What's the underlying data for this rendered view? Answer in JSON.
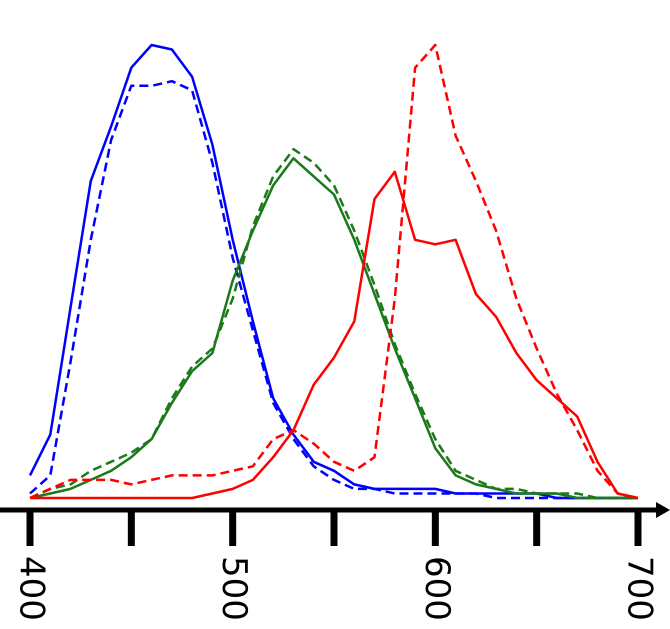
{
  "chart_data": {
    "type": "line",
    "x": [
      400,
      410,
      420,
      430,
      440,
      450,
      460,
      470,
      480,
      490,
      500,
      510,
      520,
      530,
      540,
      550,
      560,
      570,
      580,
      590,
      600,
      610,
      620,
      630,
      640,
      650,
      660,
      670,
      680,
      690,
      700
    ],
    "xlim": [
      400,
      700
    ],
    "xticks": [
      400,
      500,
      600,
      700
    ],
    "minor_xticks": [
      450,
      550,
      650
    ],
    "ylim": [
      0,
      1
    ],
    "series": [
      {
        "color": "#0000ff",
        "dashed": false,
        "values": [
          0.05,
          0.14,
          0.42,
          0.7,
          0.82,
          0.95,
          1.0,
          0.99,
          0.93,
          0.78,
          0.57,
          0.39,
          0.22,
          0.14,
          0.08,
          0.06,
          0.03,
          0.02,
          0.02,
          0.02,
          0.02,
          0.01,
          0.01,
          0.01,
          0.01,
          0.01,
          0,
          0,
          0,
          0,
          0
        ]
      },
      {
        "color": "#0000ff",
        "dashed": true,
        "values": [
          0.01,
          0.05,
          0.3,
          0.57,
          0.79,
          0.91,
          0.91,
          0.92,
          0.9,
          0.74,
          0.53,
          0.37,
          0.21,
          0.13,
          0.07,
          0.04,
          0.02,
          0.02,
          0.01,
          0.01,
          0.01,
          0.01,
          0.01,
          0,
          0,
          0,
          0,
          0,
          0,
          0,
          0
        ]
      },
      {
        "color": "#1a7a1a",
        "dashed": false,
        "values": [
          0,
          0.01,
          0.02,
          0.04,
          0.06,
          0.09,
          0.13,
          0.21,
          0.28,
          0.32,
          0.48,
          0.59,
          0.69,
          0.75,
          0.71,
          0.67,
          0.57,
          0.45,
          0.33,
          0.22,
          0.11,
          0.05,
          0.03,
          0.02,
          0.01,
          0.01,
          0.01,
          0,
          0,
          0,
          0
        ]
      },
      {
        "color": "#1a7a1a",
        "dashed": true,
        "values": [
          0,
          0.02,
          0.03,
          0.06,
          0.08,
          0.1,
          0.13,
          0.22,
          0.29,
          0.33,
          0.44,
          0.6,
          0.71,
          0.77,
          0.74,
          0.69,
          0.59,
          0.47,
          0.34,
          0.23,
          0.13,
          0.06,
          0.04,
          0.02,
          0.02,
          0.01,
          0.01,
          0.01,
          0,
          0,
          0
        ]
      },
      {
        "color": "#ff0000",
        "dashed": false,
        "values": [
          0,
          0,
          0,
          0,
          0,
          0,
          0,
          0,
          0,
          0.01,
          0.02,
          0.04,
          0.09,
          0.15,
          0.25,
          0.31,
          0.39,
          0.66,
          0.72,
          0.57,
          0.56,
          0.57,
          0.45,
          0.4,
          0.32,
          0.26,
          0.22,
          0.18,
          0.08,
          0.01,
          0
        ]
      },
      {
        "color": "#ff0000",
        "dashed": true,
        "values": [
          0,
          0.02,
          0.04,
          0.04,
          0.04,
          0.03,
          0.04,
          0.05,
          0.05,
          0.05,
          0.06,
          0.07,
          0.13,
          0.15,
          0.12,
          0.08,
          0.06,
          0.09,
          0.44,
          0.95,
          1.0,
          0.8,
          0.7,
          0.59,
          0.44,
          0.33,
          0.23,
          0.15,
          0.06,
          0.01,
          0
        ]
      }
    ]
  }
}
